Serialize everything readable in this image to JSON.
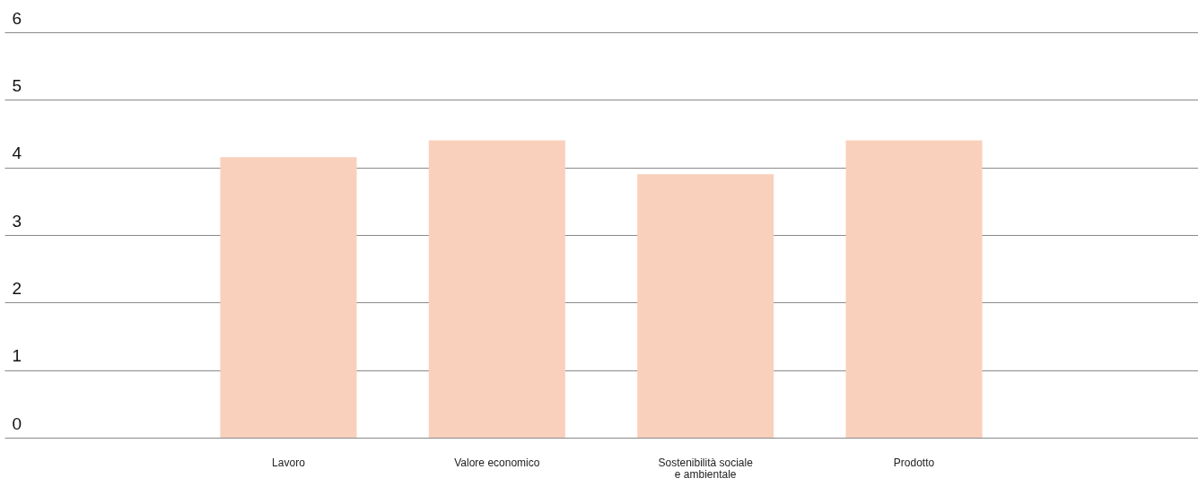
{
  "chart_data": {
    "type": "bar",
    "categories": [
      "Lavoro",
      "Valore economico",
      "Sostenibilità sociale\ne ambientale",
      "Prodotto"
    ],
    "values": [
      4.15,
      4.4,
      3.9,
      4.4
    ],
    "color": "#f9d0bb",
    "ylim": [
      0,
      6
    ],
    "yticks": [
      0,
      1,
      2,
      3,
      4,
      5,
      6
    ],
    "grid": "y"
  }
}
